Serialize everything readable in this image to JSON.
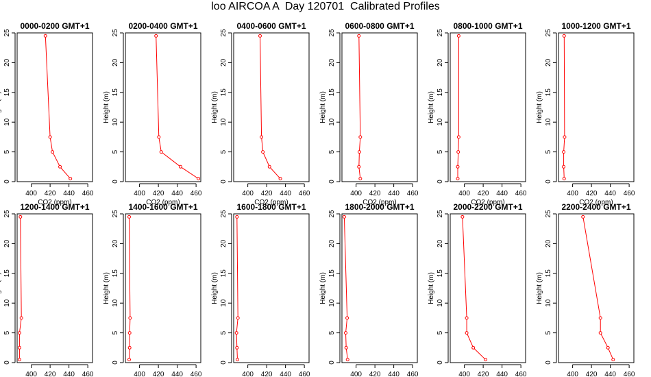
{
  "page": {
    "title": "loo AIRCOA A  Day 120701  Calibrated Profiles"
  },
  "colors": {
    "series": "#ff0000",
    "axis": "#000000",
    "background": "#ffffff"
  },
  "chart_data": [
    {
      "type": "line",
      "title": "0000-0200 GMT+1",
      "xlabel": "CO2 (ppm)",
      "ylabel": "Height (m)",
      "xlim": [
        385,
        465
      ],
      "ylim": [
        0,
        25
      ],
      "xticks": [
        400,
        420,
        440,
        460
      ],
      "yticks": [
        0,
        5,
        10,
        15,
        20,
        25
      ],
      "grid": false,
      "series": [
        {
          "x": [
            441.5,
            430.5,
            422.5,
            420.0,
            415.0
          ],
          "y": [
            0.5,
            2.5,
            5.0,
            7.5,
            24.5
          ]
        }
      ]
    },
    {
      "type": "line",
      "title": "0200-0400 GMT+1",
      "xlabel": "CO2 (ppm)",
      "ylabel": "Height (m)",
      "xlim": [
        385,
        465
      ],
      "ylim": [
        0,
        25
      ],
      "xticks": [
        400,
        420,
        440,
        460
      ],
      "yticks": [
        0,
        5,
        10,
        15,
        20,
        25
      ],
      "grid": false,
      "series": [
        {
          "x": [
            462.5,
            443.5,
            423.0,
            420.5,
            417.5
          ],
          "y": [
            0.5,
            2.5,
            5.0,
            7.5,
            24.5
          ]
        }
      ]
    },
    {
      "type": "line",
      "title": "0400-0600 GMT+1",
      "xlabel": "CO2 (ppm)",
      "ylabel": "Height (m)",
      "xlim": [
        385,
        465
      ],
      "ylim": [
        0,
        25
      ],
      "xticks": [
        400,
        420,
        440,
        460
      ],
      "yticks": [
        0,
        5,
        10,
        15,
        20,
        25
      ],
      "grid": false,
      "series": [
        {
          "x": [
            434.5,
            423.0,
            416.0,
            414.5,
            413.0
          ],
          "y": [
            0.5,
            2.5,
            5.0,
            7.5,
            24.5
          ]
        }
      ]
    },
    {
      "type": "line",
      "title": "0600-0800 GMT+1",
      "xlabel": "CO2 (ppm)",
      "ylabel": "Height (m)",
      "xlim": [
        385,
        465
      ],
      "ylim": [
        0,
        25
      ],
      "xticks": [
        400,
        420,
        440,
        460
      ],
      "yticks": [
        0,
        5,
        10,
        15,
        20,
        25
      ],
      "grid": false,
      "series": [
        {
          "x": [
            404.5,
            403.0,
            403.5,
            404.5,
            403.0
          ],
          "y": [
            0.5,
            2.5,
            5.0,
            7.5,
            24.5
          ]
        }
      ]
    },
    {
      "type": "line",
      "title": "0800-1000 GMT+1",
      "xlabel": "CO2 (ppm)",
      "ylabel": "Height (m)",
      "xlim": [
        385,
        465
      ],
      "ylim": [
        0,
        25
      ],
      "xticks": [
        400,
        420,
        440,
        460
      ],
      "yticks": [
        0,
        5,
        10,
        15,
        20,
        25
      ],
      "grid": false,
      "series": [
        {
          "x": [
            393.0,
            393.0,
            393.5,
            394.0,
            394.0
          ],
          "y": [
            0.5,
            2.5,
            5.0,
            7.5,
            24.5
          ]
        }
      ]
    },
    {
      "type": "line",
      "title": "1000-1200 GMT+1",
      "xlabel": "CO2 (ppm)",
      "ylabel": "Height (m)",
      "xlim": [
        385,
        465
      ],
      "ylim": [
        0,
        25
      ],
      "xticks": [
        400,
        420,
        440,
        460
      ],
      "yticks": [
        0,
        5,
        10,
        15,
        20,
        25
      ],
      "grid": false,
      "series": [
        {
          "x": [
            391.0,
            390.5,
            390.5,
            391.5,
            391.0
          ],
          "y": [
            0.5,
            2.5,
            5.0,
            7.5,
            24.5
          ]
        }
      ]
    },
    {
      "type": "line",
      "title": "1200-1400 GMT+1",
      "xlabel": "CO2 (ppm)",
      "ylabel": "Height (m)",
      "xlim": [
        385,
        465
      ],
      "ylim": [
        0,
        25
      ],
      "xticks": [
        400,
        420,
        440,
        460
      ],
      "yticks": [
        0,
        5,
        10,
        15,
        20,
        25
      ],
      "grid": false,
      "series": [
        {
          "x": [
            387.5,
            387.5,
            387.5,
            389.5,
            388.5
          ],
          "y": [
            0.5,
            2.5,
            5.0,
            7.5,
            24.5
          ]
        }
      ]
    },
    {
      "type": "line",
      "title": "1400-1600 GMT+1",
      "xlabel": "CO2 (ppm)",
      "ylabel": "Height (m)",
      "xlim": [
        385,
        465
      ],
      "ylim": [
        0,
        25
      ],
      "xticks": [
        400,
        420,
        440,
        460
      ],
      "yticks": [
        0,
        5,
        10,
        15,
        20,
        25
      ],
      "grid": false,
      "series": [
        {
          "x": [
            389.0,
            389.5,
            389.5,
            390.0,
            389.0
          ],
          "y": [
            0.5,
            2.5,
            5.0,
            7.5,
            24.5
          ]
        }
      ]
    },
    {
      "type": "line",
      "title": "1600-1800 GMT+1",
      "xlabel": "CO2 (ppm)",
      "ylabel": "Height (m)",
      "xlim": [
        385,
        465
      ],
      "ylim": [
        0,
        25
      ],
      "xticks": [
        400,
        420,
        440,
        460
      ],
      "yticks": [
        0,
        5,
        10,
        15,
        20,
        25
      ],
      "grid": false,
      "series": [
        {
          "x": [
            389.0,
            388.5,
            388.0,
            389.5,
            388.5
          ],
          "y": [
            0.5,
            2.5,
            5.0,
            7.5,
            24.5
          ]
        }
      ]
    },
    {
      "type": "line",
      "title": "1800-2000 GMT+1",
      "xlabel": "CO2 (ppm)",
      "ylabel": "Height (m)",
      "xlim": [
        385,
        465
      ],
      "ylim": [
        0,
        25
      ],
      "xticks": [
        400,
        420,
        440,
        460
      ],
      "yticks": [
        0,
        5,
        10,
        15,
        20,
        25
      ],
      "grid": false,
      "series": [
        {
          "x": [
            391.0,
            389.5,
            389.0,
            390.5,
            387.5
          ],
          "y": [
            0.5,
            2.5,
            5.0,
            7.5,
            24.5
          ]
        }
      ]
    },
    {
      "type": "line",
      "title": "2000-2200 GMT+1",
      "xlabel": "CO2 (ppm)",
      "ylabel": "Height (m)",
      "xlim": [
        385,
        465
      ],
      "ylim": [
        0,
        25
      ],
      "xticks": [
        400,
        420,
        440,
        460
      ],
      "yticks": [
        0,
        5,
        10,
        15,
        20,
        25
      ],
      "grid": false,
      "series": [
        {
          "x": [
            422.5,
            409.5,
            402.5,
            402.5,
            398.0
          ],
          "y": [
            0.5,
            2.5,
            5.0,
            7.5,
            24.5
          ]
        }
      ]
    },
    {
      "type": "line",
      "title": "2200-2400 GMT+1",
      "xlabel": "CO2 (ppm)",
      "ylabel": "Height (m)",
      "xlim": [
        385,
        465
      ],
      "ylim": [
        0,
        25
      ],
      "xticks": [
        400,
        420,
        440,
        460
      ],
      "yticks": [
        0,
        5,
        10,
        15,
        20,
        25
      ],
      "grid": false,
      "series": [
        {
          "x": [
            443.0,
            437.5,
            429.5,
            429.5,
            411.0
          ],
          "y": [
            0.5,
            2.5,
            5.0,
            7.5,
            24.5
          ]
        }
      ]
    }
  ]
}
